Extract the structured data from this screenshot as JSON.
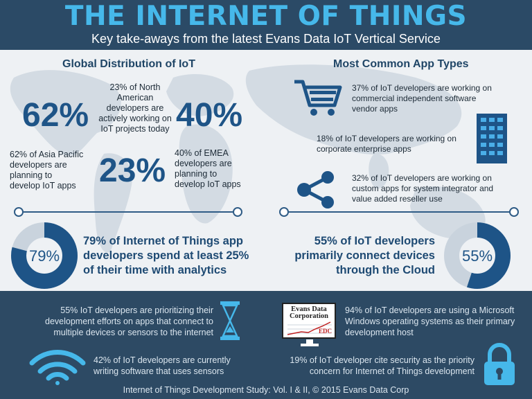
{
  "header": {
    "title": "THE INTERNET OF THINGS",
    "subtitle": "Key take-aways from the latest Evans Data IoT Vertical Service"
  },
  "global": {
    "title": "Global Distribution of IoT",
    "asia_pct": "62%",
    "asia_text": [
      "62% of Asia Pacific",
      "developers are",
      "planning to",
      "develop IoT apps"
    ],
    "na_pct": "23%",
    "na_text": [
      "23% of North",
      "American",
      "developers are",
      "actively working on",
      "IoT projects today"
    ],
    "emea_pct": "40%",
    "emea_text": [
      "40% of EMEA",
      "developers are",
      "planning to",
      "develop IoT apps"
    ]
  },
  "apps": {
    "title": "Most Common App Types",
    "item1": [
      "37% of IoT developers are working on",
      "commercial independent software",
      "vendor apps"
    ],
    "item2": [
      "18% of IoT developers are working on",
      "corporate enterprise apps"
    ],
    "item3": [
      "32% of IoT developers are working on",
      "custom apps for system integrator and",
      "value added reseller use"
    ]
  },
  "analytics": {
    "pct_label": "79%",
    "value": 0.79,
    "text": [
      "79% of Internet of Things app",
      "developers spend at least 25%",
      "of their time with analytics"
    ]
  },
  "cloud": {
    "pct_label": "55%",
    "value": 0.55,
    "text": [
      "55% of IoT developers",
      "primarily connect devices",
      "through the Cloud"
    ]
  },
  "footer": {
    "multi": [
      "55% IoT developers are prioritizing their",
      "development efforts on apps that connect to",
      "multiple devices or sensors to the internet"
    ],
    "sensors": [
      "42% of IoT developers are currently",
      "writing software that uses sensors"
    ],
    "windows": [
      "94% of IoT developers are using a Microsoft",
      "Windows operating systems as their primary",
      "development host"
    ],
    "security": [
      "19% of IoT developer cite security as the priority",
      "concern for Internet of Things development"
    ],
    "logo_line1": "Evans Data",
    "logo_line2": "Corporation",
    "logo_mark": "EDC",
    "credit": "Internet of Things Development Study: Vol. I & II, © 2015 Evans Data Corp"
  },
  "colors": {
    "header_bg": "#2b4a66",
    "title": "#46b8ea",
    "accent_dark": "#1e5487",
    "accent_light": "#4aaee8",
    "donut_track": "#c9d3dd",
    "footer_bg": "#2d4a64"
  }
}
